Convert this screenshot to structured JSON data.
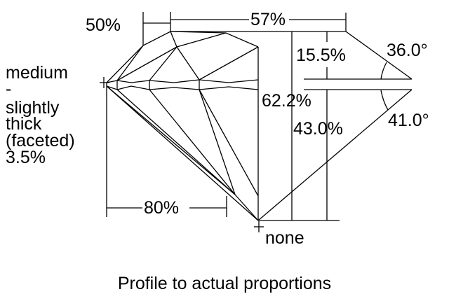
{
  "diagram": {
    "caption": "Profile to actual proportions",
    "table_percent": "57%",
    "star_length": "50%",
    "lower_half_length": "80%",
    "crown_height": "15.5%",
    "crown_angle": "36.0°",
    "total_depth": "62.2%",
    "pavilion_depth": "43.0%",
    "pavilion_angle": "41.0°",
    "culet": "none",
    "girdle": [
      "medium",
      "-",
      "slightly",
      "thick",
      "(faceted)",
      "3.5%"
    ],
    "line_color": "#000000",
    "background": "#ffffff"
  }
}
